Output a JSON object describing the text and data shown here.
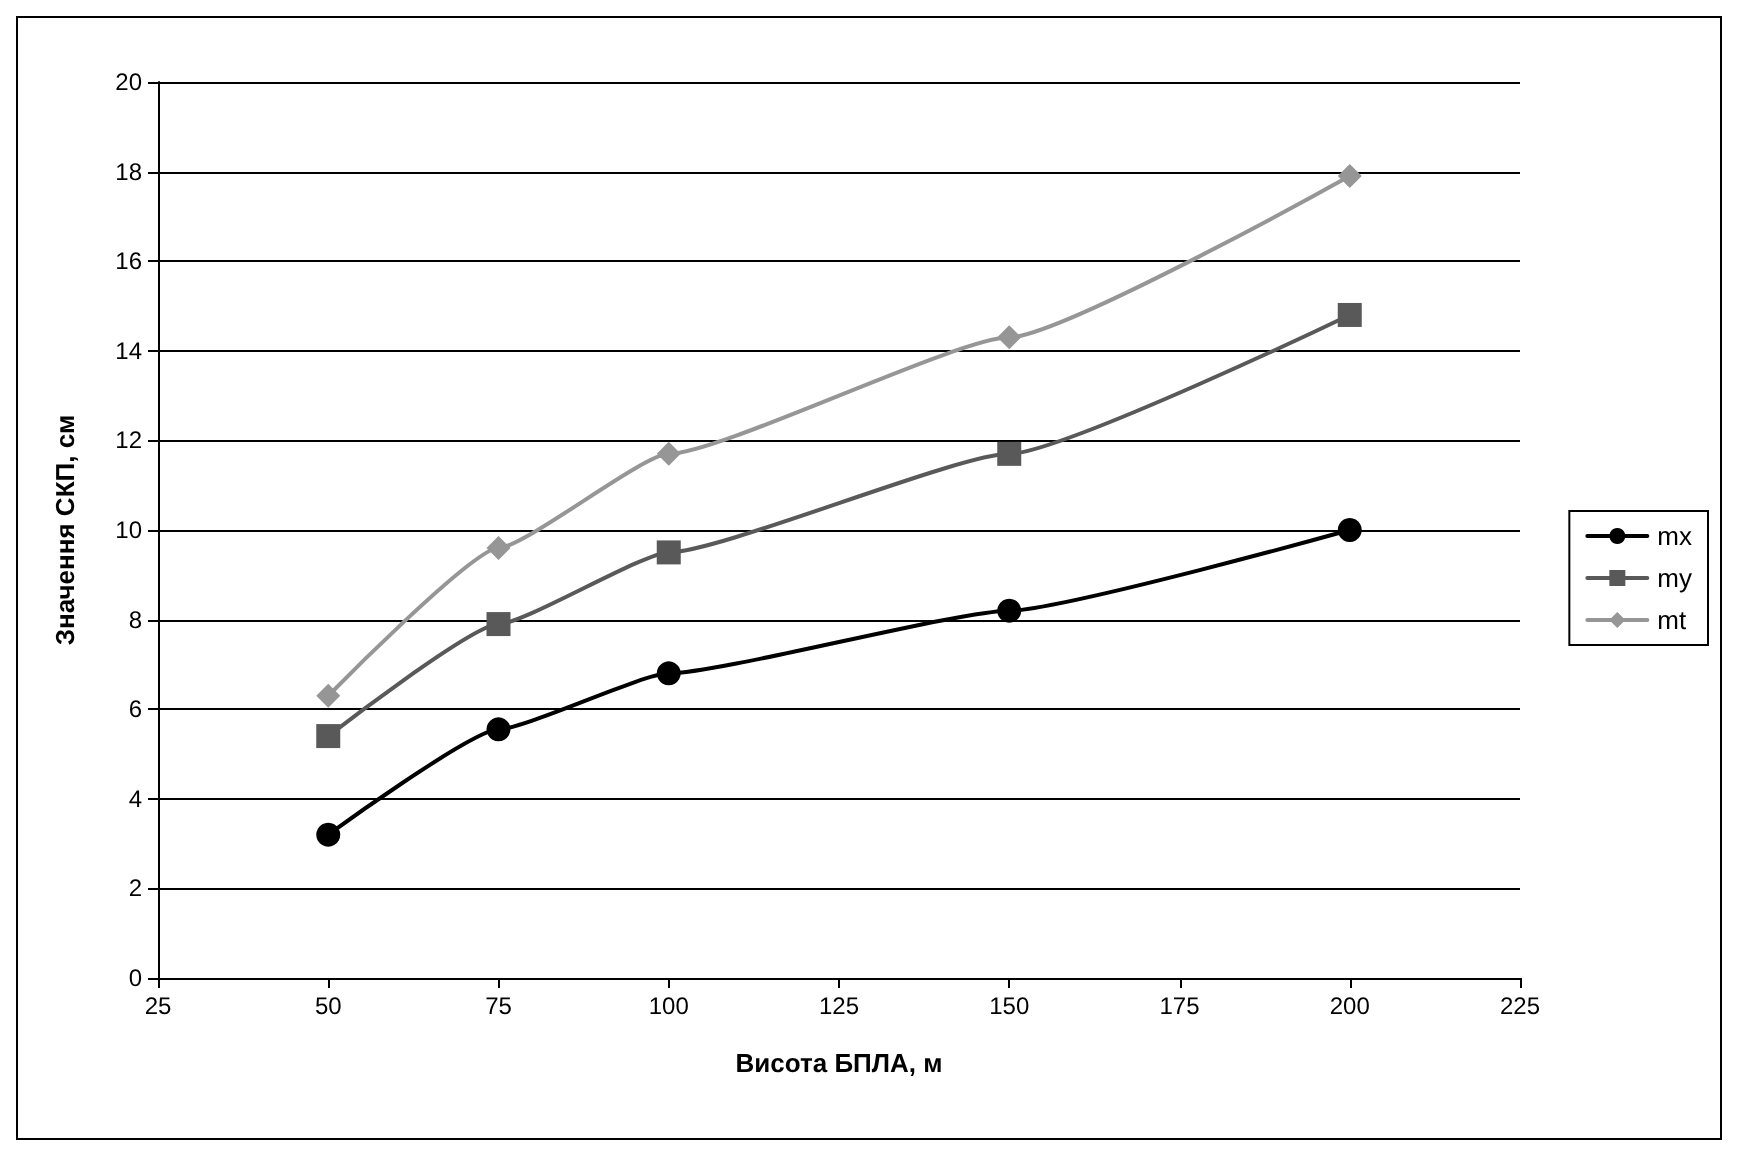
{
  "chart_data": {
    "type": "line",
    "xlabel": "Висота БПЛА, м",
    "ylabel": "Значення СКП, см",
    "x": [
      50,
      75,
      100,
      150,
      200
    ],
    "series": [
      {
        "name": "mx",
        "color": "#000000",
        "marker": "circle",
        "values": [
          3.2,
          5.55,
          6.8,
          8.2,
          10.0
        ]
      },
      {
        "name": "my",
        "color": "#595959",
        "marker": "square",
        "values": [
          5.4,
          7.9,
          9.5,
          11.7,
          14.8
        ]
      },
      {
        "name": "mt",
        "color": "#969696",
        "marker": "diamond",
        "values": [
          6.3,
          9.6,
          11.7,
          14.3,
          17.9
        ]
      }
    ],
    "xlim": [
      25,
      225
    ],
    "xticks": [
      25,
      50,
      75,
      100,
      125,
      150,
      175,
      200,
      225
    ],
    "ylim": [
      0,
      20
    ],
    "yticks": [
      0,
      2,
      4,
      6,
      8,
      10,
      12,
      14,
      16,
      18,
      20
    ],
    "grid": "y",
    "legend": "right"
  }
}
